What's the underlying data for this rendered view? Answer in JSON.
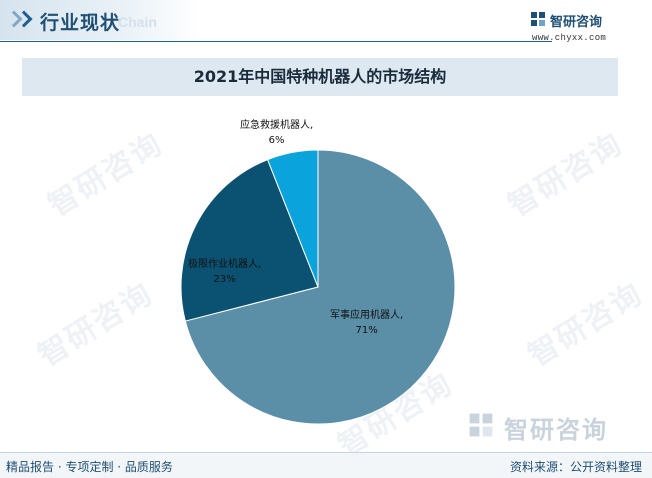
{
  "header": {
    "section_title": "行业现状",
    "ghost_text": "Chain",
    "brand_name": "智研咨询",
    "brand_site": "www.chyxx.com"
  },
  "chart_data": {
    "type": "pie",
    "title": "2021年中国特种机器人的市场结构",
    "slices": [
      {
        "label": "军事应用机器人,",
        "pct_text": "71%",
        "value": 71,
        "color": "#5b8fa8"
      },
      {
        "label": "极限作业机器人,",
        "pct_text": "23%",
        "value": 23,
        "color": "#0b5272"
      },
      {
        "label": "应急救援机器人,",
        "pct_text": "6%",
        "value": 6,
        "color": "#0aa3dc"
      }
    ],
    "start": "12 o'clock",
    "direction": "clockwise"
  },
  "watermark": {
    "text": "智研咨询"
  },
  "footer": {
    "logo_text": "智研咨询",
    "tagline": "精品报告 · 专项定制 · 品质服务",
    "source": "资料来源：公开资料整理"
  }
}
